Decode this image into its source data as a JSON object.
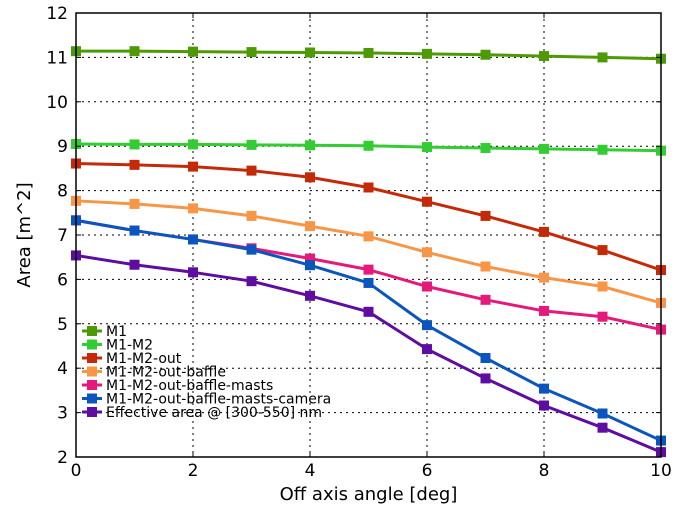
{
  "chart_data": {
    "type": "line",
    "xlabel": "Off axis angle [deg]",
    "ylabel": "Area [m^2]",
    "xlim": [
      0,
      10
    ],
    "ylim": [
      2,
      12
    ],
    "xticks": [
      "0",
      "2",
      "4",
      "6",
      "8",
      "10"
    ],
    "yticks": [
      "2",
      "3",
      "4",
      "5",
      "6",
      "7",
      "8",
      "9",
      "10",
      "11",
      "12"
    ],
    "grid": true,
    "legend_position": "bottom-left",
    "x": [
      0,
      1,
      2,
      3,
      4,
      5,
      6,
      7,
      8,
      9,
      10
    ],
    "series": [
      {
        "name": "M1",
        "color": "#4e9a06",
        "values": [
          11.14,
          11.14,
          11.13,
          11.12,
          11.11,
          11.1,
          11.08,
          11.06,
          11.03,
          11.0,
          10.97
        ]
      },
      {
        "name": "M1-M2",
        "color": "#33cc33",
        "values": [
          9.05,
          9.04,
          9.04,
          9.03,
          9.02,
          9.01,
          8.98,
          8.96,
          8.94,
          8.92,
          8.9
        ]
      },
      {
        "name": "M1-M2-out",
        "color": "#c52a08",
        "values": [
          8.61,
          8.58,
          8.54,
          8.45,
          8.3,
          8.07,
          7.75,
          7.43,
          7.07,
          6.66,
          6.21
        ]
      },
      {
        "name": "M1-M2-out-baffle",
        "color": "#f79646",
        "values": [
          7.77,
          7.7,
          7.6,
          7.43,
          7.2,
          6.97,
          6.61,
          6.29,
          6.04,
          5.84,
          5.47
        ]
      },
      {
        "name": "M1-M2-out-baffle-masts",
        "color": "#e5197a",
        "values": [
          7.33,
          7.1,
          6.9,
          6.7,
          6.47,
          6.22,
          5.84,
          5.54,
          5.29,
          5.16,
          4.87
        ]
      },
      {
        "name": "M1-M2-out-baffle-masts-camera",
        "color": "#0a56be",
        "values": [
          7.33,
          7.1,
          6.9,
          6.67,
          6.32,
          5.92,
          4.97,
          4.23,
          3.54,
          2.98,
          2.37
        ]
      },
      {
        "name": "Effective area @ [300-550] nm",
        "color": "#5e0da0",
        "values": [
          6.54,
          6.33,
          6.16,
          5.96,
          5.63,
          5.27,
          4.43,
          3.77,
          3.16,
          2.66,
          2.11
        ]
      }
    ]
  }
}
